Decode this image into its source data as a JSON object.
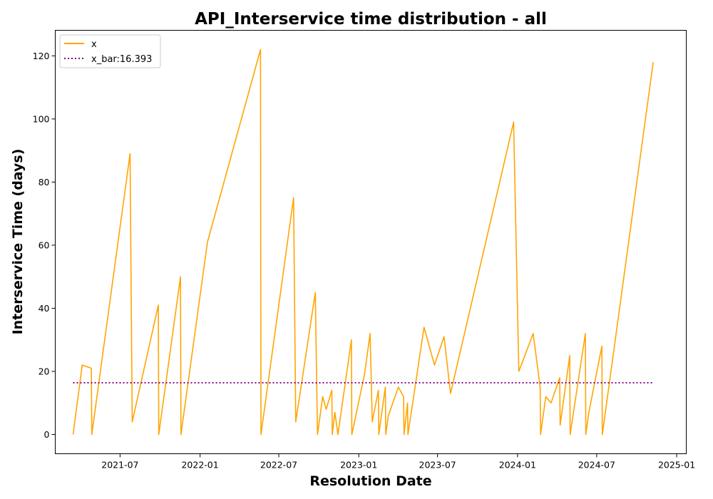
{
  "chart_data": {
    "type": "line",
    "title": "API_Interservice time distribution - all",
    "xlabel": "Resolution Date",
    "ylabel": "Interservice Time (days)",
    "x_axis": {
      "kind": "date",
      "range": [
        "2021-02-02",
        "2025-01-23"
      ],
      "ticks": [
        {
          "date": "2021-07-01",
          "label": "2021-07"
        },
        {
          "date": "2022-01-01",
          "label": "2022-01"
        },
        {
          "date": "2022-07-01",
          "label": "2022-07"
        },
        {
          "date": "2023-01-01",
          "label": "2023-01"
        },
        {
          "date": "2023-07-01",
          "label": "2023-07"
        },
        {
          "date": "2024-01-01",
          "label": "2024-01"
        },
        {
          "date": "2024-07-01",
          "label": "2024-07"
        },
        {
          "date": "2025-01-01",
          "label": "2025-01"
        }
      ]
    },
    "y_axis": {
      "range": [
        -6.1,
        128.1
      ],
      "ticks": [
        0,
        20,
        40,
        60,
        80,
        100,
        120
      ]
    },
    "grid": false,
    "legend_position": "top-left",
    "series": [
      {
        "name": "x",
        "color": "#ffa500",
        "style": "solid",
        "points": [
          [
            "2021-03-15",
            0
          ],
          [
            "2021-04-05",
            22
          ],
          [
            "2021-04-26",
            21
          ],
          [
            "2021-04-27",
            0
          ],
          [
            "2021-07-24",
            89
          ],
          [
            "2021-07-29",
            4
          ],
          [
            "2021-09-27",
            41
          ],
          [
            "2021-09-28",
            0
          ],
          [
            "2021-11-17",
            50
          ],
          [
            "2021-11-18",
            0
          ],
          [
            "2022-01-18",
            61
          ],
          [
            "2022-05-20",
            122
          ],
          [
            "2022-05-21",
            0
          ],
          [
            "2022-08-04",
            75
          ],
          [
            "2022-08-09",
            4
          ],
          [
            "2022-09-23",
            45
          ],
          [
            "2022-09-28",
            0
          ],
          [
            "2022-10-10",
            12
          ],
          [
            "2022-10-18",
            8
          ],
          [
            "2022-10-31",
            14
          ],
          [
            "2022-11-01",
            0
          ],
          [
            "2022-11-07",
            7
          ],
          [
            "2022-11-14",
            0
          ],
          [
            "2022-12-15",
            30
          ],
          [
            "2022-12-16",
            0
          ],
          [
            "2023-01-14",
            19
          ],
          [
            "2023-01-27",
            32
          ],
          [
            "2023-02-01",
            4
          ],
          [
            "2023-02-15",
            14
          ],
          [
            "2023-02-16",
            0
          ],
          [
            "2023-03-03",
            15
          ],
          [
            "2023-03-04",
            0
          ],
          [
            "2023-03-10",
            6
          ],
          [
            "2023-04-02",
            15
          ],
          [
            "2023-04-14",
            12
          ],
          [
            "2023-04-15",
            0
          ],
          [
            "2023-04-23",
            10
          ],
          [
            "2023-04-24",
            0
          ],
          [
            "2023-05-31",
            34
          ],
          [
            "2023-06-24",
            22
          ],
          [
            "2023-07-16",
            31
          ],
          [
            "2023-07-31",
            13
          ],
          [
            "2023-12-23",
            99
          ],
          [
            "2024-01-04",
            20
          ],
          [
            "2024-02-06",
            32
          ],
          [
            "2024-02-22",
            15
          ],
          [
            "2024-02-23",
            0
          ],
          [
            "2024-03-06",
            12
          ],
          [
            "2024-03-18",
            10
          ],
          [
            "2024-04-07",
            18
          ],
          [
            "2024-04-08",
            3
          ],
          [
            "2024-04-30",
            25
          ],
          [
            "2024-05-01",
            0
          ],
          [
            "2024-06-05",
            32
          ],
          [
            "2024-06-06",
            0
          ],
          [
            "2024-06-13",
            7
          ],
          [
            "2024-07-13",
            28
          ],
          [
            "2024-07-14",
            0
          ],
          [
            "2024-11-08",
            118
          ]
        ]
      },
      {
        "name": "x_bar:16.393",
        "color": "#800080",
        "style": "dotted",
        "points": [
          [
            "2021-03-15",
            16.393
          ],
          [
            "2024-11-08",
            16.393
          ]
        ]
      }
    ]
  }
}
